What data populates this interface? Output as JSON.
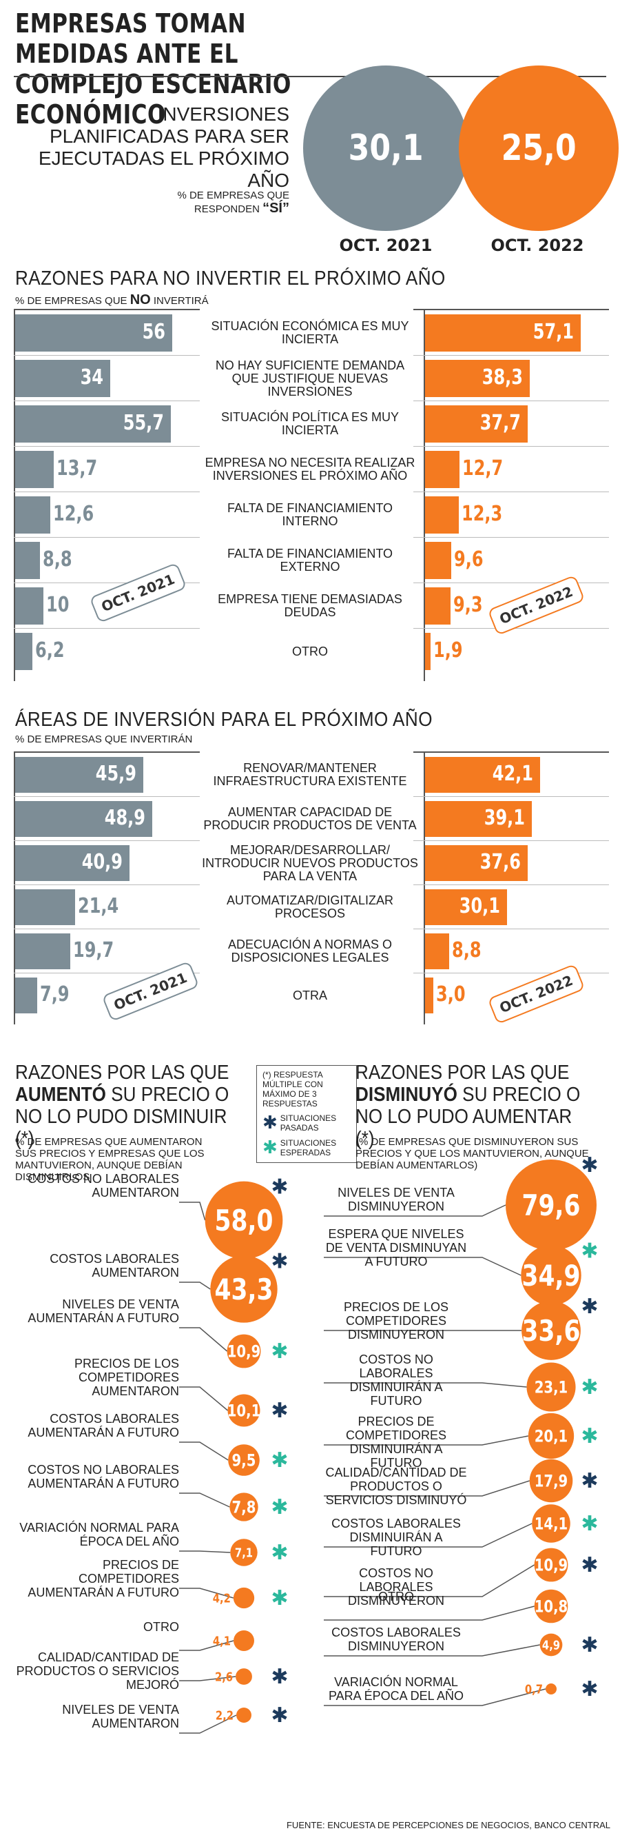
{
  "title": "EMPRESAS TOMAN MEDIDAS ANTE EL COMPLEJO ESCENARIO ECONÓMICO",
  "colors": {
    "oct2021": "#7d8d96",
    "oct2022": "#f47a20",
    "star_past": "#1c3a5c",
    "star_expected": "#2bb89c"
  },
  "investment": {
    "label": "INVERSIONES PLANIFICADAS PARA SER EJECUTADAS EL PRÓXIMO AÑO",
    "sub_pre": "% DE EMPRESAS QUE RESPONDEN",
    "sub_yes": "“SÍ”",
    "v2021": "30,1",
    "v2022": "25,0",
    "l2021": "OCT. 2021",
    "l2022": "OCT. 2022"
  },
  "badges": {
    "y2021": "OCT. 2021",
    "y2022": "OCT. 2022"
  },
  "reasons_no": {
    "title": "RAZONES PARA NO INVERTIR EL PRÓXIMO AÑO",
    "sub_pre": "% DE EMPRESAS QUE",
    "sub_no": "NO",
    "sub_post": "INVERTIRÁ"
  },
  "areas": {
    "title": "ÁREAS DE INVERSIÓN PARA EL PRÓXIMO AÑO",
    "sub": "% DE EMPRESAS QUE INVERTIRÁN"
  },
  "price_up": {
    "t1": "RAZONES POR LAS QUE",
    "t_bold": "AUMENTÓ",
    "t2": "SU PRECIO O NO LO PUDO DISMINUIR (*)",
    "sub": "% DE EMPRESAS QUE AUMENTARON SUS PRECIOS Y EMPRESAS QUE LOS MANTUVIERON, AUNQUE DEBÍAN DISMINUIRLOS"
  },
  "price_down": {
    "t1": "RAZONES POR LAS QUE",
    "t_bold": "DISMINUYÓ",
    "t2": "SU PRECIO O NO LO PUDO AUMENTAR (*)",
    "sub": "(% DE EMPRESAS QUE DISMINUYERON SUS PRECIOS Y QUE LOS MANTUVIERON, AUNQUE DEBÍAN AUMENTARLOS)"
  },
  "legend": {
    "note": "(*) RESPUESTA MÚLTIPLE CON MÁXIMO DE 3 RESPUESTAS",
    "past": "SITUACIONES PASADAS",
    "expected": "SITUACIONES ESPERADAS"
  },
  "source": "FUENTE: ENCUESTA DE PERCEPCIONES DE NEGOCIOS, BANCO CENTRAL",
  "chart_data": [
    {
      "type": "bar",
      "title": "RAZONES PARA NO INVERTIR EL PRÓXIMO AÑO",
      "categories": [
        "SITUACIÓN ECONÓMICA ES MUY INCIERTA",
        "NO HAY SUFICIENTE DEMANDA QUE JUSTIFIQUE NUEVAS INVERSIONES",
        "SITUACIÓN POLÍTICA ES MUY INCIERTA",
        "EMPRESA NO NECESITA REALIZAR INVERSIONES EL PRÓXIMO AÑO",
        "FALTA DE FINANCIAMIENTO INTERNO",
        "FALTA DE FINANCIAMIENTO EXTERNO",
        "EMPRESA TIENE DEMASIADAS DEUDAS",
        "OTRO"
      ],
      "series": [
        {
          "name": "OCT. 2021",
          "values": [
            56,
            34,
            55.7,
            13.7,
            12.6,
            8.8,
            10,
            6.2
          ],
          "labels": [
            "56",
            "34",
            "55,7",
            "13,7",
            "12,6",
            "8,8",
            "10",
            "6,2"
          ]
        },
        {
          "name": "OCT. 2022",
          "values": [
            57.1,
            38.3,
            37.7,
            12.7,
            12.3,
            9.6,
            9.3,
            1.9
          ],
          "labels": [
            "57,1",
            "38,3",
            "37,7",
            "12,7",
            "12,3",
            "9,6",
            "9,3",
            "1,9"
          ]
        }
      ]
    },
    {
      "type": "bar",
      "title": "ÁREAS DE INVERSIÓN PARA EL PRÓXIMO AÑO",
      "categories": [
        "RENOVAR/MANTENER INFRAESTRUCTURA EXISTENTE",
        "AUMENTAR CAPACIDAD DE PRODUCIR PRODUCTOS DE VENTA",
        "MEJORAR/DESARROLLAR/ INTRODUCIR NUEVOS PRODUCTOS PARA LA VENTA",
        "AUTOMATIZAR/DIGITALIZAR PROCESOS",
        "ADECUACIÓN A NORMAS O DISPOSICIONES LEGALES",
        "OTRA"
      ],
      "series": [
        {
          "name": "OCT. 2021",
          "values": [
            45.9,
            48.9,
            40.9,
            21.4,
            19.7,
            7.9
          ],
          "labels": [
            "45,9",
            "48,9",
            "40,9",
            "21,4",
            "19,7",
            "7,9"
          ]
        },
        {
          "name": "OCT. 2022",
          "values": [
            42.1,
            39.1,
            37.6,
            30.1,
            8.8,
            3.0
          ],
          "labels": [
            "42,1",
            "39,1",
            "37,6",
            "30,1",
            "8,8",
            "3,0"
          ]
        }
      ]
    },
    {
      "type": "scatter",
      "title": "RAZONES POR LAS QUE AUMENTÓ SU PRECIO O NO LO PUDO DISMINUIR (*)",
      "items": [
        {
          "label": "COSTOS NO LABORALES AUMENTARON",
          "value": 58.0,
          "text": "58,0",
          "mark": "past"
        },
        {
          "label": "COSTOS LABORALES AUMENTARON",
          "value": 43.3,
          "text": "43,3",
          "mark": "past"
        },
        {
          "label": "NIVELES DE VENTA AUMENTARÁN A FUTURO",
          "value": 10.9,
          "text": "10,9",
          "mark": "expected"
        },
        {
          "label": "PRECIOS DE LOS COMPETIDORES AUMENTARON",
          "value": 10.1,
          "text": "10,1",
          "mark": "past"
        },
        {
          "label": "COSTOS LABORALES AUMENTARÁN A FUTURO",
          "value": 9.5,
          "text": "9,5",
          "mark": "expected"
        },
        {
          "label": "COSTOS NO LABORALES AUMENTARÁN A FUTURO",
          "value": 7.8,
          "text": "7,8",
          "mark": "expected"
        },
        {
          "label": "VARIACIÓN NORMAL PARA ÉPOCA DEL AÑO",
          "value": 7.1,
          "text": "7,1",
          "mark": "expected"
        },
        {
          "label": "PRECIOS DE COMPETIDORES AUMENTARÁN A FUTURO",
          "value": 4.2,
          "text": "4,2",
          "mark": "expected"
        },
        {
          "label": "OTRO",
          "value": 4.1,
          "text": "4,1",
          "mark": ""
        },
        {
          "label": "CALIDAD/CANTIDAD DE PRODUCTOS O SERVICIOS MEJORÓ",
          "value": 2.6,
          "text": "2,6",
          "mark": "past"
        },
        {
          "label": "NIVELES DE VENTA AUMENTARON",
          "value": 2.2,
          "text": "2,2",
          "mark": "past"
        }
      ]
    },
    {
      "type": "scatter",
      "title": "RAZONES POR LAS QUE DISMINUYÓ SU PRECIO O NO LO PUDO AUMENTAR (*)",
      "items": [
        {
          "label": "NIVELES DE VENTA DISMINUYERON",
          "value": 79.6,
          "text": "79,6",
          "mark": "past"
        },
        {
          "label": "ESPERA QUE NIVELES DE VENTA DISMINUYAN A FUTURO",
          "value": 34.9,
          "text": "34,9",
          "mark": "expected"
        },
        {
          "label": "PRECIOS DE LOS COMPETIDORES DISMINUYERON",
          "value": 33.6,
          "text": "33,6",
          "mark": "past"
        },
        {
          "label": "COSTOS NO LABORALES DISMINUIRÁN A FUTURO",
          "value": 23.1,
          "text": "23,1",
          "mark": "expected"
        },
        {
          "label": "PRECIOS DE COMPETIDORES DISMINUIRÁN A FUTURO",
          "value": 20.1,
          "text": "20,1",
          "mark": "expected"
        },
        {
          "label": "CALIDAD/CANTIDAD DE PRODUCTOS O SERVICIOS DISMINUYÓ",
          "value": 17.9,
          "text": "17,9",
          "mark": "past"
        },
        {
          "label": "COSTOS LABORALES DISMINUIRÁN A FUTURO",
          "value": 14.1,
          "text": "14,1",
          "mark": "expected"
        },
        {
          "label": "COSTOS NO LABORALES DISMINUYERON",
          "value": 10.9,
          "text": "10,9",
          "mark": "past"
        },
        {
          "label": "OTRO",
          "value": 10.8,
          "text": "10,8",
          "mark": ""
        },
        {
          "label": "COSTOS LABORALES DISMINUYERON",
          "value": 4.9,
          "text": "4,9",
          "mark": "past"
        },
        {
          "label": "VARIACIÓN NORMAL PARA ÉPOCA DEL AÑO",
          "value": 0.7,
          "text": "0,7",
          "mark": "past"
        }
      ]
    }
  ]
}
